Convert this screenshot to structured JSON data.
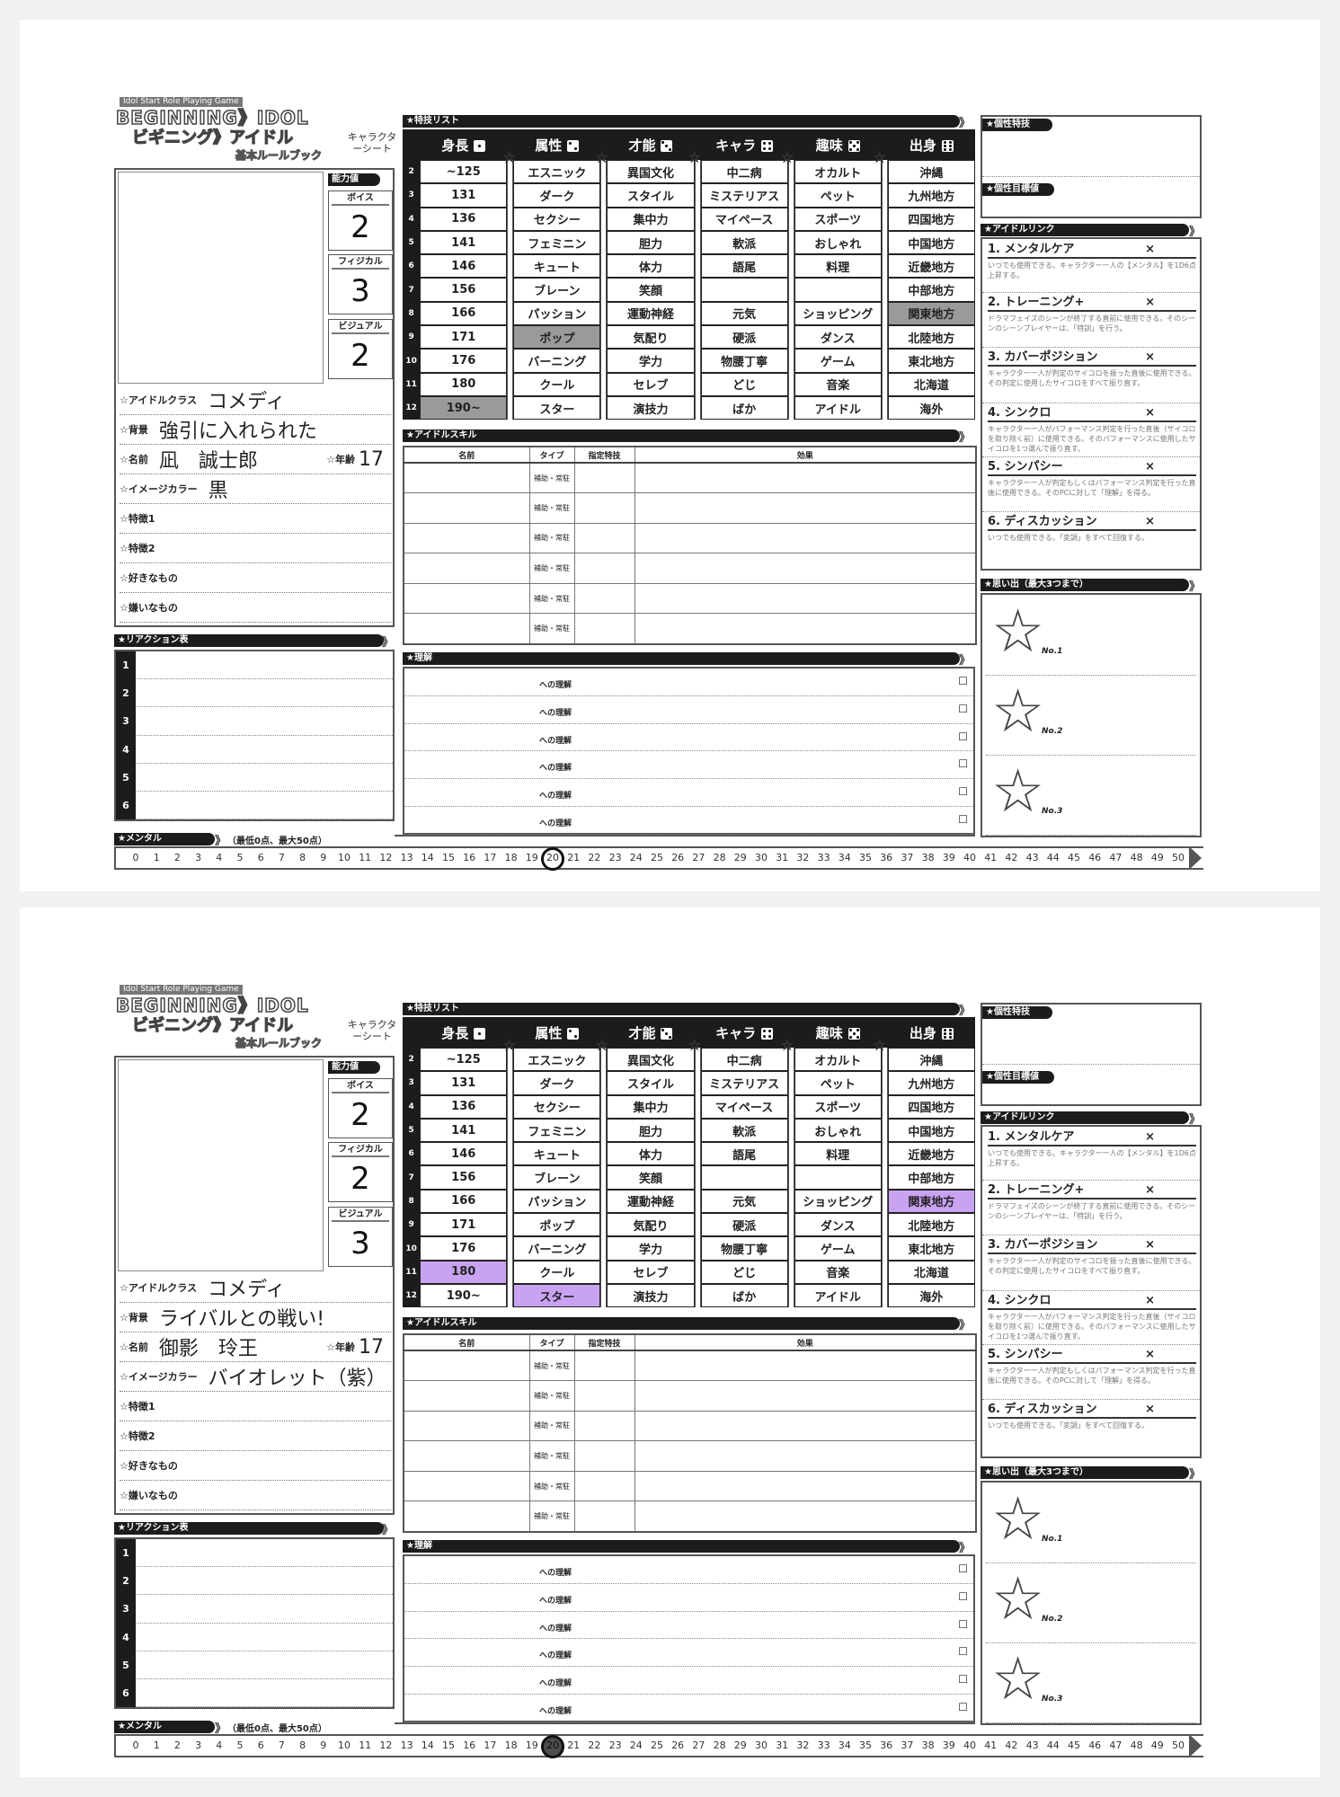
{
  "logo": {
    "tagline": "Idol Start Role Playing Game",
    "title_en": "BEGINNING》IDOL",
    "title_ja": "ビギニング》アイドル",
    "subtitle": "基本ルールブック",
    "sheet_label": "キャラクターシート"
  },
  "labels": {
    "stats_header": "能力値",
    "voice": "ボイス",
    "physical": "フィジカル",
    "visual": "ビジュアル",
    "idol_class": "☆アイドルクラス",
    "background": "☆背景",
    "name": "☆名前",
    "age": "☆年齢",
    "image_color": "☆イメージカラー",
    "trait1": "☆特徴1",
    "trait2": "☆特徴2",
    "likes": "☆好きなもの",
    "dislikes": "☆嫌いなもの",
    "reaction": "★リアクション表",
    "specialty_list": "★特技リスト",
    "idol_skill": "★アイドルスキル",
    "understanding": "★理解",
    "personal_skill": "★個性特技",
    "personal_target": "★個性目標値",
    "idol_link": "★アイドルリンク",
    "memories": "★思い出（最大3つまで）",
    "mental": "★メンタル",
    "mental_range": "（最低0点、最大50点）"
  },
  "specialty_table": {
    "columns": [
      {
        "label": "身長",
        "die": 1,
        "items": [
          "~125",
          "131",
          "136",
          "141",
          "146",
          "156",
          "166",
          "171",
          "176",
          "180",
          "190~"
        ]
      },
      {
        "label": "属性",
        "die": 2,
        "items": [
          "エスニック",
          "ダーク",
          "セクシー",
          "フェミニン",
          "キュート",
          "ブレーン",
          "パッション",
          "ポップ",
          "バーニング",
          "クール",
          "スター"
        ]
      },
      {
        "label": "才能",
        "die": 3,
        "items": [
          "異国文化",
          "スタイル",
          "集中力",
          "胆力",
          "体力",
          "笑顔",
          "運動神経",
          "気配り",
          "学力",
          "セレブ",
          "演技力"
        ]
      },
      {
        "label": "キャラ",
        "die": 4,
        "items": [
          "中二病",
          "ミステリアス",
          "マイペース",
          "軟派",
          "語尾",
          "",
          "元気",
          "硬派",
          "物腰丁寧",
          "どじ",
          "ばか"
        ]
      },
      {
        "label": "趣味",
        "die": 5,
        "items": [
          "オカルト",
          "ペット",
          "スポーツ",
          "おしゃれ",
          "料理",
          "",
          "ショッピング",
          "ダンス",
          "ゲーム",
          "音楽",
          "アイドル"
        ]
      },
      {
        "label": "出身",
        "die": 6,
        "items": [
          "沖縄",
          "九州地方",
          "四国地方",
          "中国地方",
          "近畿地方",
          "中部地方",
          "関東地方",
          "北陸地方",
          "東北地方",
          "北海道",
          "海外"
        ]
      }
    ],
    "row_numbers": [
      "2",
      "3",
      "4",
      "5",
      "6",
      "7",
      "8",
      "9",
      "10",
      "11",
      "12"
    ]
  },
  "skill_table": {
    "headers": [
      "名前",
      "タイプ",
      "指定特技",
      "効果"
    ],
    "type_value": "補助・常駐"
  },
  "understanding_row": "への理解",
  "checkbox": "☐",
  "reaction_numbers": [
    "1",
    "2",
    "3",
    "4",
    "5",
    "6"
  ],
  "idol_links": [
    {
      "name": "1. メンタルケア",
      "mark": "×",
      "desc": "いつでも使用できる。キャラクター一人の【メンタル】を1D6点上昇する。"
    },
    {
      "name": "2. トレーニング+",
      "mark": "×",
      "desc": "ドラマフェイズのシーンが終了する直前に使用できる。そのシーンのシーンプレイヤーは、「特訓」を行う。"
    },
    {
      "name": "3. カバーポジション",
      "mark": "×",
      "desc": "キャラクター一人が判定のサイコロを振った直後に使用できる。その判定に使用したサイコロをすべて振り直す。"
    },
    {
      "name": "4. シンクロ",
      "mark": "×",
      "desc": "キャラクター一人がパフォーマンス判定を行った直後（サイコロを取り除く前）に使用できる。そのパフォーマンスに使用したサイコロを1つ選んで振り直す。"
    },
    {
      "name": "5. シンパシー",
      "mark": "×",
      "desc": "キャラクター一人が判定もしくはパフォーマンス判定を行った直後に使用できる。そのPCに対して「理解」を得る。"
    },
    {
      "name": "6. ディスカッション",
      "mark": "×",
      "desc": "いつでも使用できる。「変調」をすべて回復する。"
    }
  ],
  "memory_labels": [
    "No.1",
    "No.2",
    "No.3"
  ],
  "mental_scale": [
    "0",
    "1",
    "2",
    "3",
    "4",
    "5",
    "6",
    "7",
    "8",
    "9",
    "10",
    "11",
    "12",
    "13",
    "14",
    "15",
    "16",
    "17",
    "18",
    "19",
    "20",
    "21",
    "22",
    "23",
    "24",
    "25",
    "26",
    "27",
    "28",
    "29",
    "30",
    "31",
    "32",
    "33",
    "34",
    "35",
    "36",
    "37",
    "38",
    "39",
    "40",
    "41",
    "42",
    "43",
    "44",
    "45",
    "46",
    "47",
    "48",
    "49",
    "50"
  ],
  "sheets": [
    {
      "stats": {
        "voice": "2",
        "physical": "3",
        "visual": "2"
      },
      "info": {
        "idol_class": "コメディ",
        "background": "強引に入れられた",
        "name": "凪　誠士郎",
        "age": "17",
        "image_color": "黒"
      },
      "highlight_color": "#9a9a9a",
      "highlights": [
        {
          "column": "身長",
          "item": "190~"
        },
        {
          "column": "属性",
          "item": "ポップ"
        },
        {
          "column": "出身",
          "item": "関東地方"
        }
      ],
      "mental_value": 20
    },
    {
      "stats": {
        "voice": "2",
        "physical": "2",
        "visual": "3"
      },
      "info": {
        "idol_class": "コメディ",
        "background": "ライバルとの戦い!",
        "name": "御影　玲王",
        "age": "17",
        "image_color": "バイオレット（紫）"
      },
      "highlight_color": "#c9a3f2",
      "highlights": [
        {
          "column": "身長",
          "item": "180"
        },
        {
          "column": "属性",
          "item": "スター"
        },
        {
          "column": "出身",
          "item": "関東地方"
        }
      ],
      "mental_value": 20
    }
  ]
}
